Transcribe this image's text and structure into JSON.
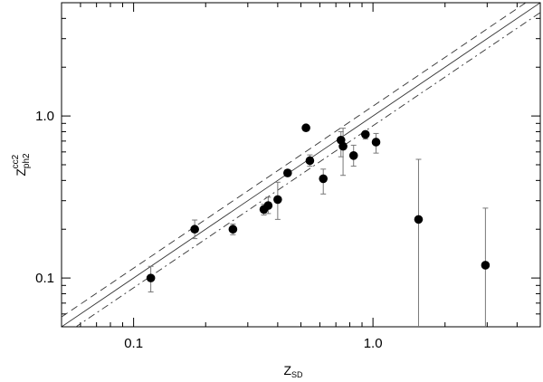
{
  "chart_data": {
    "type": "scatter",
    "xscale": "log",
    "yscale": "log",
    "xlim": [
      0.05,
      5.0
    ],
    "ylim": [
      0.05,
      5.0
    ],
    "xticks": [
      {
        "value": 0.1,
        "label": "0.1"
      },
      {
        "value": 1.0,
        "label": "1.0"
      }
    ],
    "yticks": [
      {
        "value": 0.1,
        "label": "0.1"
      },
      {
        "value": 1.0,
        "label": "1.0"
      }
    ],
    "xlabel": {
      "base": "Z",
      "sub": "SD"
    },
    "ylabel": {
      "base": "Z",
      "sup": "cc2",
      "sub": "ph2"
    },
    "grid": false,
    "points": [
      {
        "x": 0.118,
        "y": 0.1,
        "err_low": 0.082,
        "err_high": 0.118
      },
      {
        "x": 0.18,
        "y": 0.2,
        "err_low": 0.175,
        "err_high": 0.228
      },
      {
        "x": 0.26,
        "y": 0.2,
        "err_low": 0.185,
        "err_high": 0.215
      },
      {
        "x": 0.35,
        "y": 0.265,
        "err_low": 0.245,
        "err_high": 0.285
      },
      {
        "x": 0.365,
        "y": 0.28,
        "err_low": 0.25,
        "err_high": 0.315
      },
      {
        "x": 0.4,
        "y": 0.305,
        "err_low": 0.23,
        "err_high": 0.39
      },
      {
        "x": 0.44,
        "y": 0.445,
        "err_low": 0.425,
        "err_high": 0.465
      },
      {
        "x": 0.525,
        "y": 0.845,
        "err_low": 0.815,
        "err_high": 0.875
      },
      {
        "x": 0.545,
        "y": 0.53,
        "err_low": 0.49,
        "err_high": 0.575
      },
      {
        "x": 0.62,
        "y": 0.41,
        "err_low": 0.33,
        "err_high": 0.47
      },
      {
        "x": 0.735,
        "y": 0.71,
        "err_low": 0.56,
        "err_high": 0.8
      },
      {
        "x": 0.75,
        "y": 0.65,
        "err_low": 0.43,
        "err_high": 0.84
      },
      {
        "x": 0.83,
        "y": 0.57,
        "err_low": 0.49,
        "err_high": 0.66
      },
      {
        "x": 0.93,
        "y": 0.77,
        "err_low": 0.72,
        "err_high": 0.8
      },
      {
        "x": 1.03,
        "y": 0.69,
        "err_low": 0.59,
        "err_high": 0.78
      },
      {
        "x": 1.55,
        "y": 0.23,
        "err_low": 0.05,
        "err_high": 0.54
      },
      {
        "x": 2.95,
        "y": 0.12,
        "err_low": 0.05,
        "err_high": 0.27
      }
    ],
    "reference_lines": [
      {
        "style": "solid",
        "factor": 1.0
      },
      {
        "style": "dashed",
        "factor": 1.15
      },
      {
        "style": "dash-dot",
        "factor": 0.87
      }
    ]
  }
}
